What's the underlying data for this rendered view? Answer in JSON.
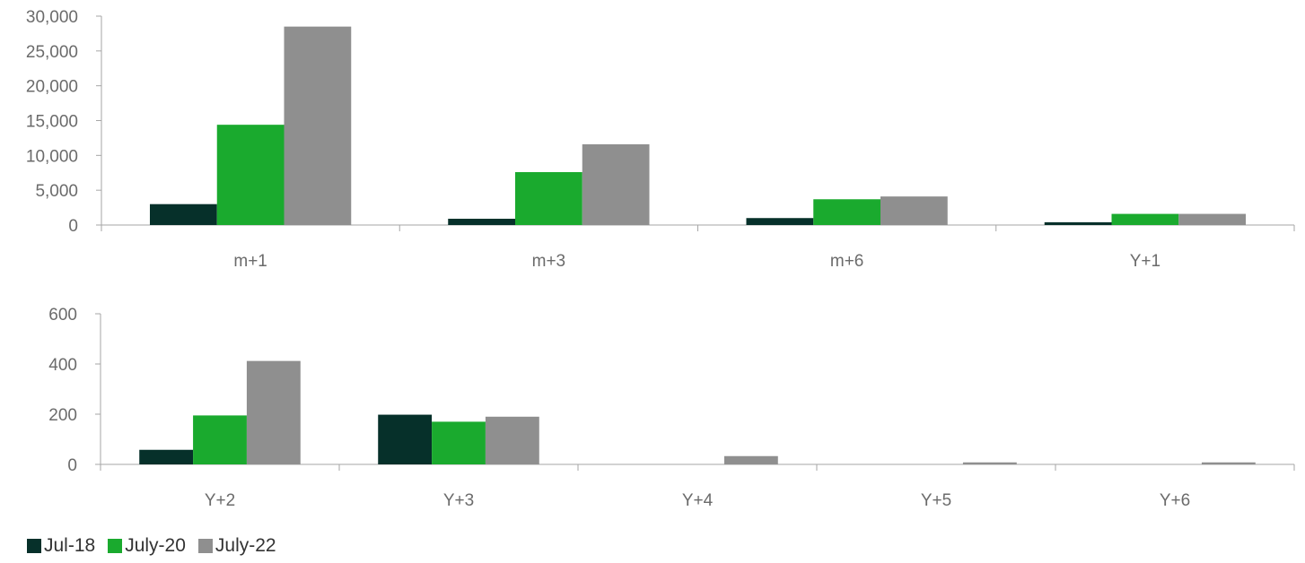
{
  "chart_data": [
    {
      "type": "bar",
      "categories": [
        "m+1",
        "m+3",
        "m+6",
        "Y+1"
      ],
      "series": [
        {
          "name": "Jul-18",
          "values": [
            3000,
            900,
            1000,
            400
          ]
        },
        {
          "name": "July-20",
          "values": [
            14400,
            7600,
            3700,
            1600
          ]
        },
        {
          "name": "July-22",
          "values": [
            28500,
            11600,
            4100,
            1600
          ]
        }
      ],
      "ylim": [
        0,
        30000
      ],
      "yticks": [
        "0",
        "5,000",
        "10,000",
        "15,000",
        "20,000",
        "25,000",
        "30,000"
      ],
      "grid": false
    },
    {
      "type": "bar",
      "categories": [
        "Y+2",
        "Y+3",
        "Y+4",
        "Y+5",
        "Y+6"
      ],
      "series": [
        {
          "name": "Jul-18",
          "values": [
            58,
            198,
            0,
            0,
            0
          ]
        },
        {
          "name": "July-20",
          "values": [
            195,
            170,
            0,
            0,
            0
          ]
        },
        {
          "name": "July-22",
          "values": [
            412,
            190,
            33,
            8,
            8
          ]
        }
      ],
      "ylim": [
        0,
        600
      ],
      "yticks": [
        "0",
        "200",
        "400",
        "600"
      ],
      "grid": false
    }
  ],
  "legend": {
    "position": "bottom-left",
    "items": [
      {
        "label": "Jul-18",
        "color": "#06302a"
      },
      {
        "label": "July-20",
        "color": "#1aaa2e"
      },
      {
        "label": "July-22",
        "color": "#8f8f8f"
      }
    ]
  },
  "colors": {
    "axis": "#a6a6a6",
    "tick_text": "#6b6b6b"
  }
}
